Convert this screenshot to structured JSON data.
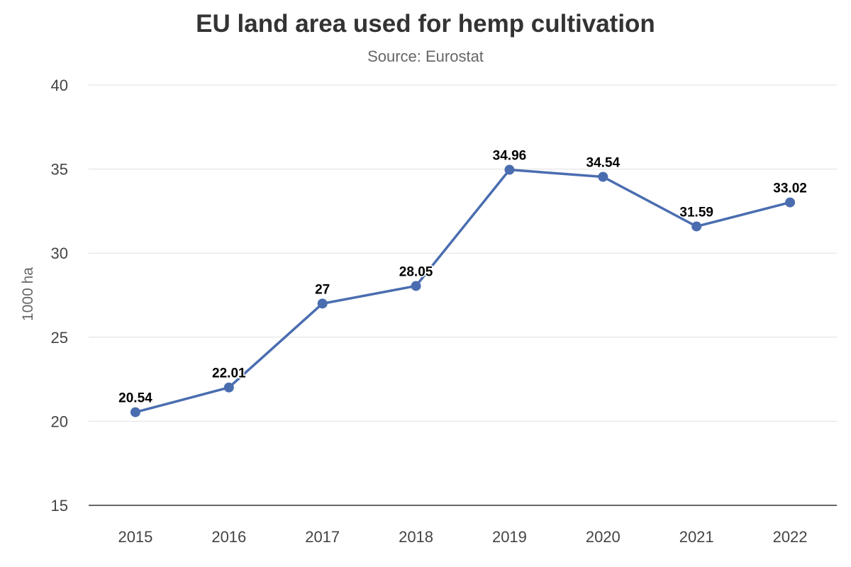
{
  "chart_data": {
    "type": "line",
    "title": "EU land area used for hemp cultivation",
    "subtitle": "Source: Eurostat",
    "xlabel": "",
    "ylabel": "1000 ha",
    "categories": [
      "2015",
      "2016",
      "2017",
      "2018",
      "2019",
      "2020",
      "2021",
      "2022"
    ],
    "values": [
      20.54,
      22.01,
      27,
      28.05,
      34.96,
      34.54,
      31.59,
      33.02
    ],
    "data_labels": [
      "20.54",
      "22.01",
      "27",
      "28.05",
      "34.96",
      "34.54",
      "31.59",
      "33.02"
    ],
    "ylim": [
      15,
      40
    ],
    "yticks": [
      15,
      20,
      25,
      30,
      35,
      40
    ],
    "grid": true,
    "legend": "none",
    "line_color": "#4a6db0"
  }
}
